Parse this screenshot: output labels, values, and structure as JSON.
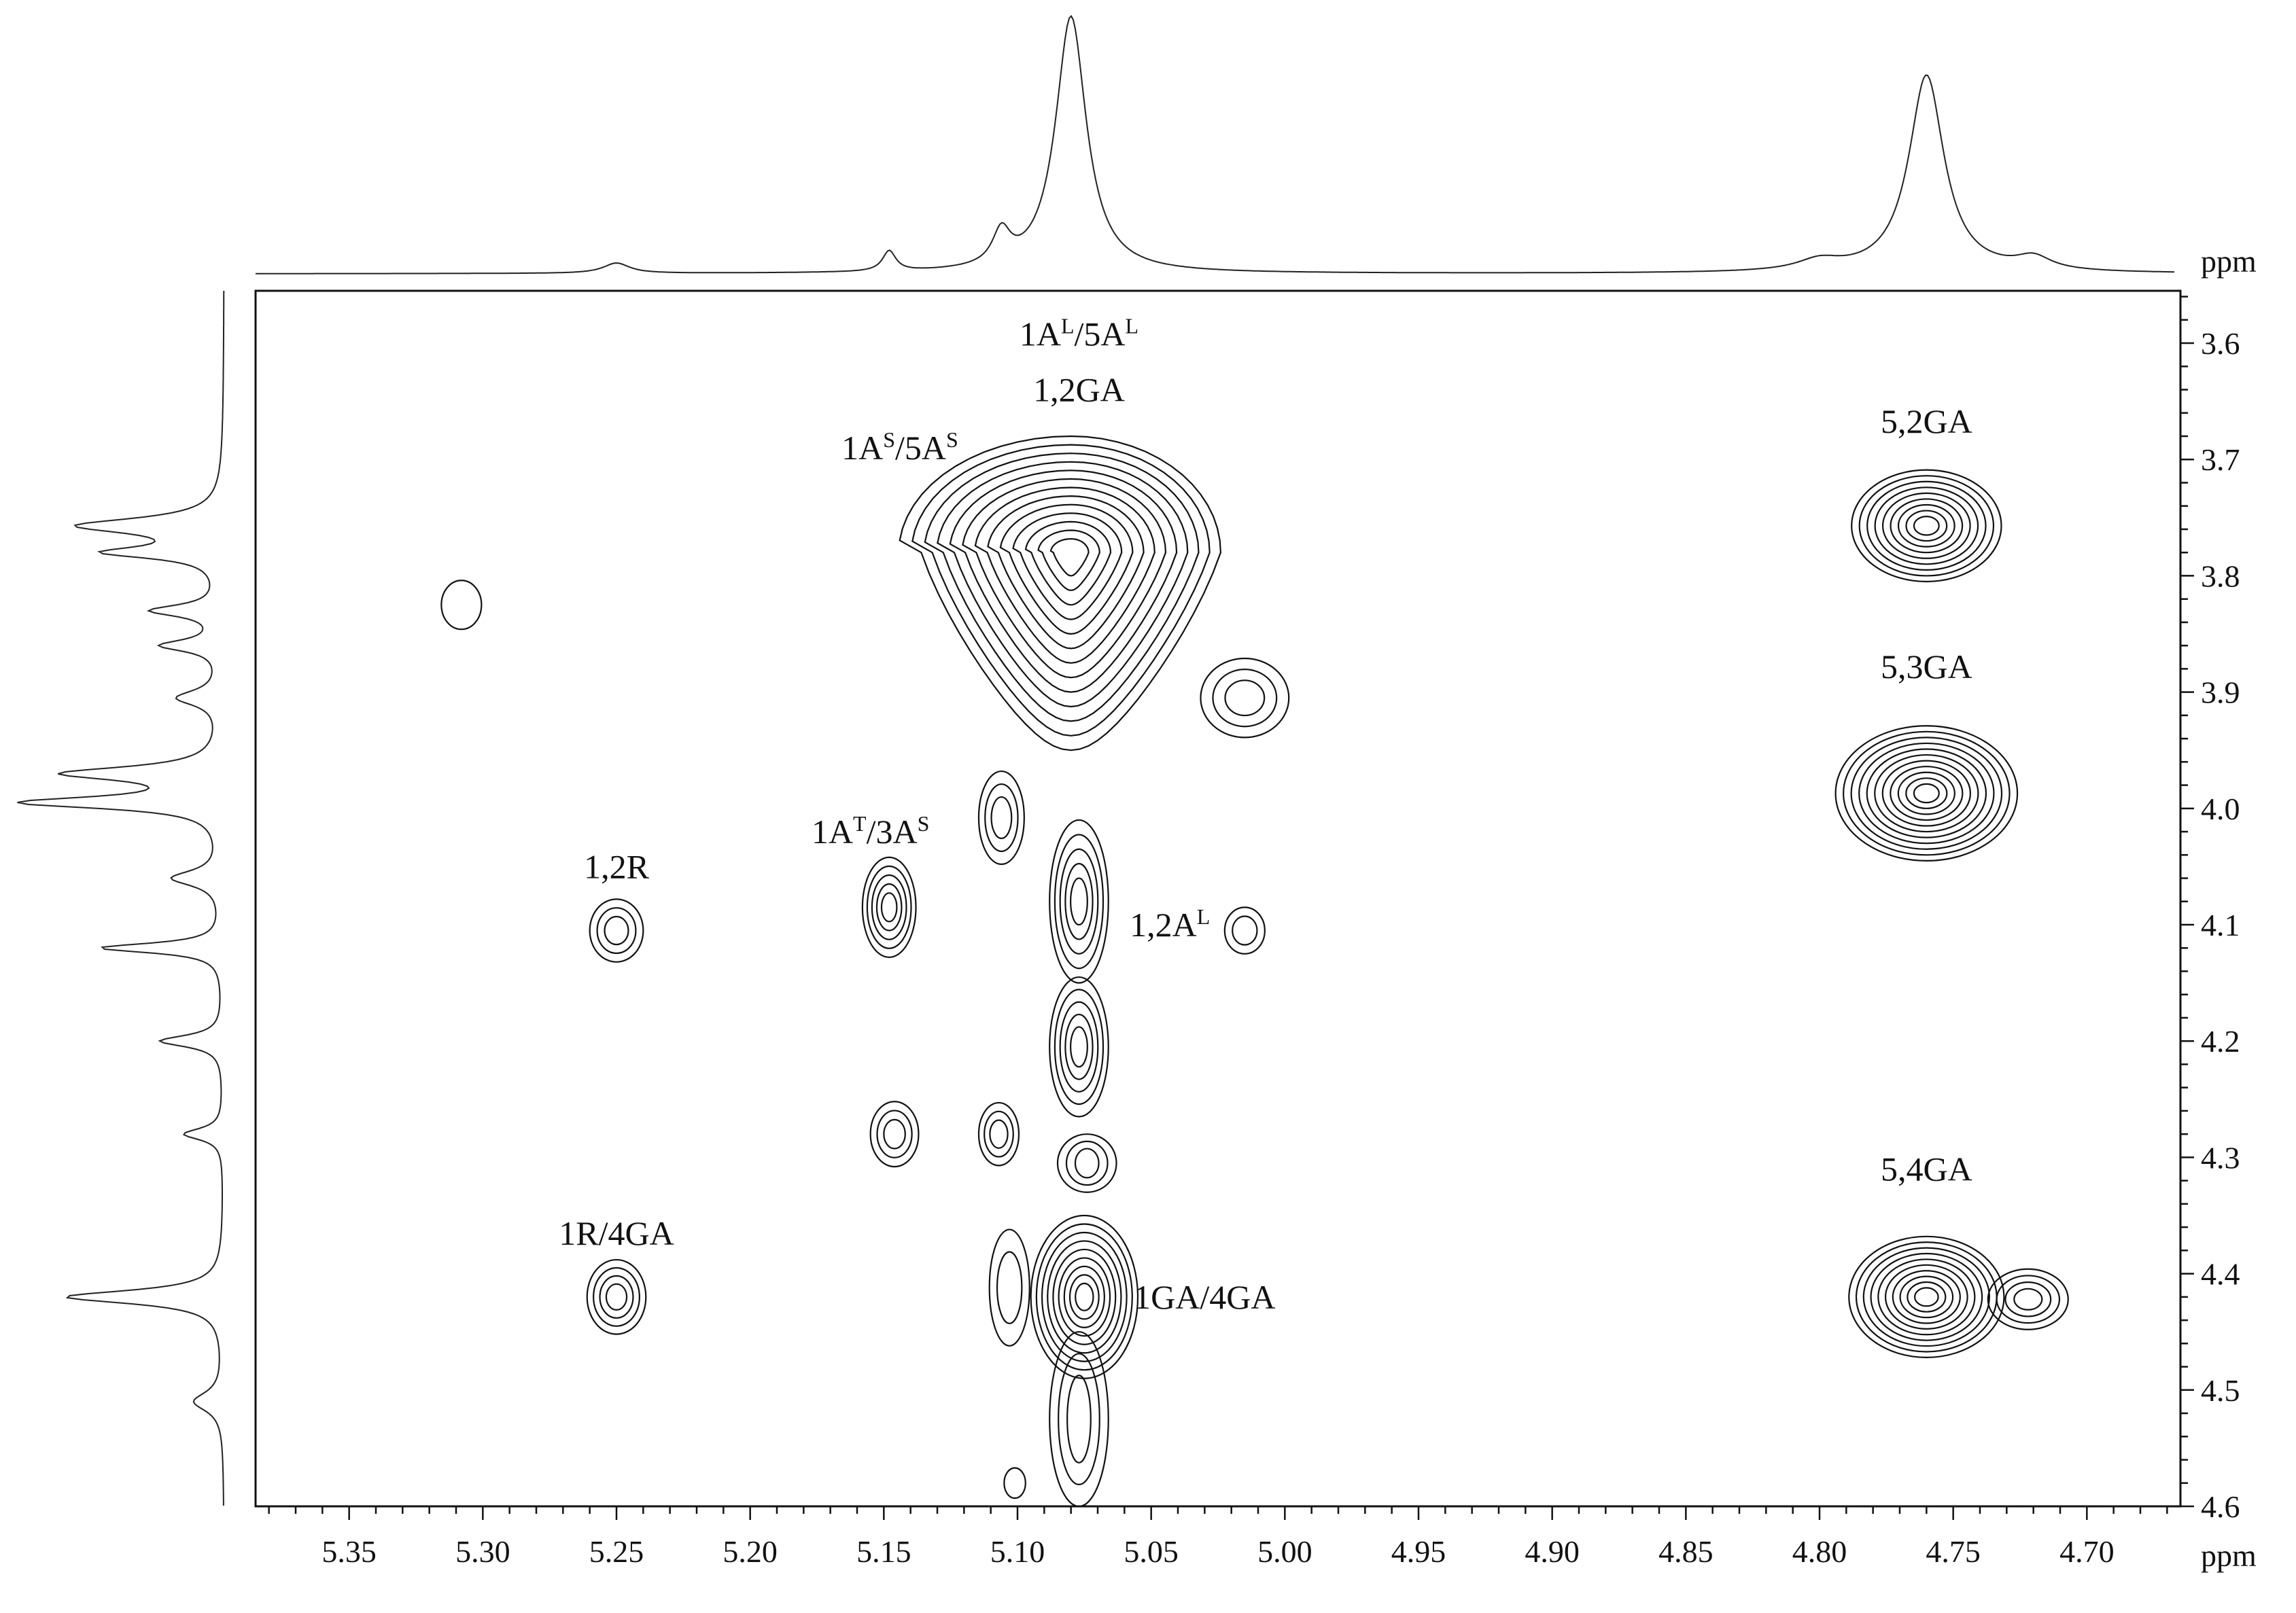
{
  "chart_data": {
    "type": "heatmap",
    "subtype": "2d-nmr-contour",
    "x_unit": "ppm",
    "y_unit": "ppm",
    "x_range": [
      5.385,
      4.665
    ],
    "y_range": [
      3.555,
      4.6
    ],
    "x_ticks": [
      "5.35",
      "5.30",
      "5.25",
      "5.20",
      "5.15",
      "5.10",
      "5.05",
      "5.00",
      "4.95",
      "4.90",
      "4.85",
      "4.80",
      "4.75",
      "4.70"
    ],
    "x_tick_values": [
      5.35,
      5.3,
      5.25,
      5.2,
      5.15,
      5.1,
      5.05,
      5.0,
      4.95,
      4.9,
      4.85,
      4.8,
      4.75,
      4.7
    ],
    "y_ticks": [
      "3.6",
      "3.7",
      "3.8",
      "3.9",
      "4.0",
      "4.1",
      "4.2",
      "4.3",
      "4.4",
      "4.5",
      "4.6"
    ],
    "y_tick_values": [
      3.6,
      3.7,
      3.8,
      3.9,
      4.0,
      4.1,
      4.2,
      4.3,
      4.4,
      4.5,
      4.6
    ],
    "peak_labels": [
      {
        "base1": "1A",
        "sup1": "L",
        "mid": "/5A",
        "sup2": "L",
        "x": 5.077,
        "y": 3.602
      },
      {
        "base1": "1,2GA",
        "x": 5.077,
        "y": 3.65
      },
      {
        "base1": "1A",
        "sup1": "S",
        "mid": "/5A",
        "sup2": "S",
        "x": 5.144,
        "y": 3.7
      },
      {
        "base1": "5,2GA",
        "x": 4.76,
        "y": 3.677
      },
      {
        "base1": "5,3GA",
        "x": 4.76,
        "y": 3.888
      },
      {
        "base1": "1A",
        "sup1": "T",
        "mid": "/3A",
        "sup2": "S",
        "x": 5.155,
        "y": 4.03
      },
      {
        "base1": "1,2R",
        "x": 5.25,
        "y": 4.06
      },
      {
        "base1": "1,2A",
        "sup1": "L",
        "x": 5.043,
        "y": 4.11
      },
      {
        "base1": "5,4GA",
        "x": 4.76,
        "y": 4.32
      },
      {
        "base1": "1R/4GA",
        "x": 5.25,
        "y": 4.375
      },
      {
        "base1": "1GA/4GA",
        "x": 5.03,
        "y": 4.43
      }
    ],
    "peaks": [
      {
        "x": 5.308,
        "y": 3.825,
        "levels": 1
      },
      {
        "x": 5.25,
        "y": 4.105,
        "levels": 3
      },
      {
        "x": 5.25,
        "y": 4.42,
        "levels": 4
      },
      {
        "x": 5.148,
        "y": 4.085,
        "levels": 5
      },
      {
        "x": 5.146,
        "y": 4.28,
        "levels": 3
      },
      {
        "x": 5.106,
        "y": 4.008,
        "levels": 3
      },
      {
        "x": 5.107,
        "y": 4.28,
        "levels": 3
      },
      {
        "x": 5.103,
        "y": 4.412,
        "levels": 2
      },
      {
        "x": 5.101,
        "y": 4.58,
        "levels": 1
      },
      {
        "x": 5.015,
        "y": 3.905,
        "levels": 3
      },
      {
        "x": 5.015,
        "y": 4.105,
        "levels": 2
      },
      {
        "x": 5.08,
        "y": 3.78,
        "levels": 13
      },
      {
        "x": 5.077,
        "y": 4.08,
        "levels": 5
      },
      {
        "x": 5.077,
        "y": 4.205,
        "levels": 5
      },
      {
        "x": 5.075,
        "y": 4.42,
        "levels": 9
      },
      {
        "x": 4.76,
        "y": 3.757,
        "levels": 9
      },
      {
        "x": 4.76,
        "y": 3.987,
        "levels": 11
      },
      {
        "x": 4.76,
        "y": 4.42,
        "levels": 10
      },
      {
        "x": 4.722,
        "y": 4.422,
        "levels": 4
      }
    ],
    "top_projection_peaks": [
      {
        "x": 5.08,
        "h": 1.0,
        "w": 0.007
      },
      {
        "x": 4.76,
        "h": 0.77,
        "w": 0.008
      },
      {
        "x": 5.106,
        "h": 0.13,
        "w": 0.004
      },
      {
        "x": 5.148,
        "h": 0.08,
        "w": 0.003
      },
      {
        "x": 5.25,
        "h": 0.04,
        "w": 0.006
      },
      {
        "x": 4.8,
        "h": 0.04,
        "w": 0.01
      },
      {
        "x": 4.72,
        "h": 0.05,
        "w": 0.008
      }
    ],
    "left_projection_peaks": [
      {
        "y": 3.757,
        "h": 0.72,
        "w": 0.008
      },
      {
        "y": 3.78,
        "h": 0.55,
        "w": 0.006
      },
      {
        "y": 3.83,
        "h": 0.35,
        "w": 0.006
      },
      {
        "y": 3.86,
        "h": 0.3,
        "w": 0.006
      },
      {
        "y": 3.905,
        "h": 0.22,
        "w": 0.008
      },
      {
        "y": 3.97,
        "h": 0.78,
        "w": 0.007
      },
      {
        "y": 3.995,
        "h": 1.0,
        "w": 0.006
      },
      {
        "y": 4.06,
        "h": 0.25,
        "w": 0.008
      },
      {
        "y": 4.12,
        "h": 0.62,
        "w": 0.005
      },
      {
        "y": 4.2,
        "h": 0.32,
        "w": 0.006
      },
      {
        "y": 4.28,
        "h": 0.2,
        "w": 0.006
      },
      {
        "y": 4.42,
        "h": 0.8,
        "w": 0.007
      },
      {
        "y": 4.51,
        "h": 0.15,
        "w": 0.01
      }
    ]
  }
}
